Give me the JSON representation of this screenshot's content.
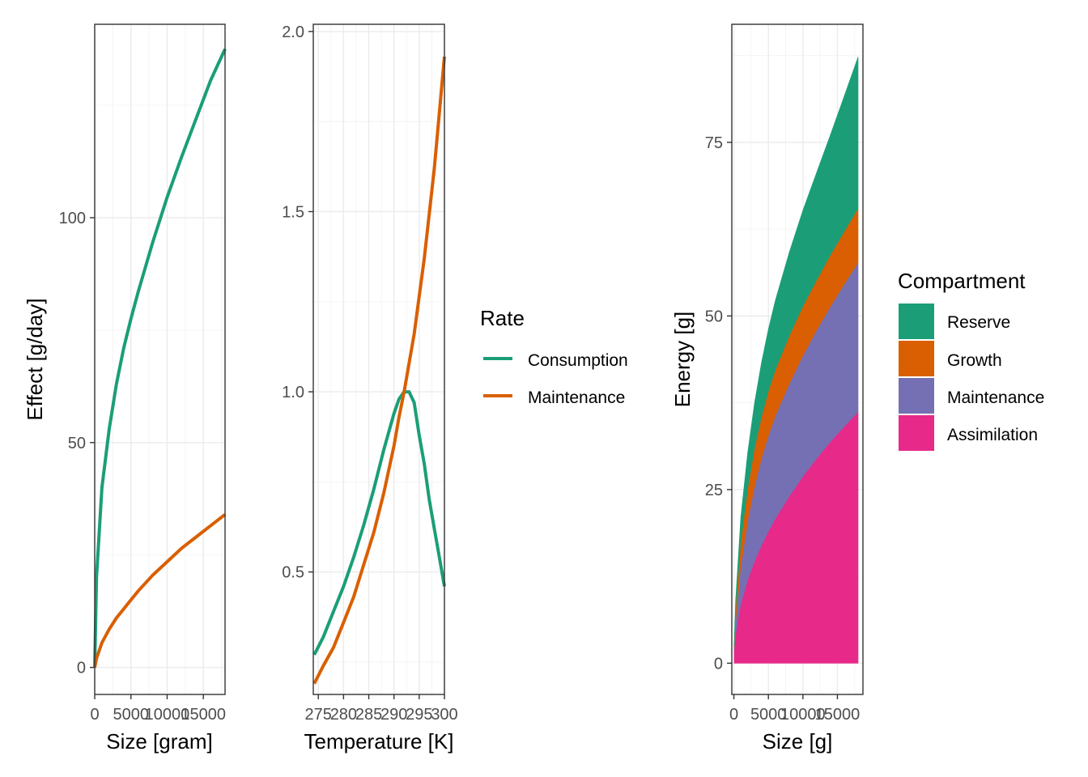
{
  "chart_data": [
    {
      "type": "line",
      "xlabel": "Size [gram]",
      "ylabel": "Effect [g/day]",
      "xlim": [
        0,
        18000
      ],
      "ylim": [
        -6,
        143
      ],
      "x_ticks": [
        0,
        5000,
        10000,
        15000
      ],
      "x_tick_labels": [
        "0",
        "5000",
        "10000",
        "15000"
      ],
      "y_ticks": [
        0,
        50,
        100
      ],
      "y_tick_labels": [
        "0",
        "50",
        "100"
      ],
      "grid": true,
      "series": [
        {
          "name": "Consumption",
          "color": "#1B9E77",
          "x": [
            0,
            250,
            1000,
            2000,
            3000,
            4000,
            5000,
            6000,
            8000,
            10000,
            12000,
            14000,
            16000,
            18000
          ],
          "y": [
            0,
            20,
            40,
            53,
            63,
            71,
            77.5,
            83.5,
            94.5,
            104.5,
            113.5,
            122,
            130.5,
            137.5
          ]
        },
        {
          "name": "Maintenance",
          "color": "#D95F02",
          "x": [
            0,
            250,
            1000,
            2000,
            3000,
            4000,
            5000,
            6000,
            8000,
            10000,
            12000,
            14000,
            16000,
            18000
          ],
          "y": [
            0,
            2,
            5.5,
            8.5,
            11,
            13,
            15,
            17,
            20.5,
            23.5,
            26.5,
            29,
            31.5,
            34
          ]
        }
      ]
    },
    {
      "type": "line",
      "xlabel": "Temperature [K]",
      "ylabel": "",
      "xlim": [
        274,
        300
      ],
      "ylim": [
        0.16,
        2.02
      ],
      "x_ticks": [
        275,
        280,
        285,
        290,
        295,
        300
      ],
      "x_tick_labels": [
        "275",
        "280",
        "285",
        "290",
        "295",
        "300"
      ],
      "y_ticks": [
        0.5,
        1.0,
        1.5,
        2.0
      ],
      "y_tick_labels": [
        "0.5",
        "1.0",
        "1.5",
        "2.0"
      ],
      "grid": true,
      "series": [
        {
          "name": "Consumption",
          "color": "#1B9E77",
          "x": [
            274.2,
            276,
            278,
            280,
            282,
            284,
            286,
            288,
            290,
            291,
            292,
            292.5,
            293,
            294,
            295,
            296,
            297,
            298,
            299,
            300
          ],
          "y": [
            0.27,
            0.32,
            0.39,
            0.46,
            0.54,
            0.63,
            0.73,
            0.84,
            0.94,
            0.98,
            1.0,
            1.0,
            1.0,
            0.97,
            0.88,
            0.8,
            0.7,
            0.62,
            0.54,
            0.46
          ]
        },
        {
          "name": "Maintenance",
          "color": "#D95F02",
          "x": [
            274.2,
            276,
            278,
            280,
            282,
            284,
            286,
            288,
            290,
            291,
            292,
            294,
            296,
            298,
            300
          ],
          "y": [
            0.19,
            0.24,
            0.29,
            0.36,
            0.43,
            0.52,
            0.61,
            0.72,
            0.85,
            0.93,
            1.0,
            1.16,
            1.37,
            1.62,
            1.93
          ]
        }
      ]
    },
    {
      "type": "area",
      "stacked": true,
      "xlabel": "Size [g]",
      "ylabel": "Energy [g]",
      "xlim": [
        -300,
        18700
      ],
      "ylim": [
        -4.5,
        92
      ],
      "x_ticks": [
        0,
        5000,
        10000,
        15000
      ],
      "x_tick_labels": [
        "0",
        "5000",
        "10000",
        "15000"
      ],
      "y_ticks": [
        0,
        25,
        50,
        75
      ],
      "y_tick_labels": [
        "0",
        "25",
        "50",
        "75"
      ],
      "grid": true,
      "x": [
        50,
        250,
        1000,
        2000,
        3000,
        4000,
        5000,
        6000,
        8000,
        10000,
        12000,
        14000,
        16000,
        18000
      ],
      "series": [
        {
          "name": "Assimilation",
          "color": "#E7298A",
          "values": [
            1.9,
            4.2,
            8.5,
            12,
            14.7,
            17,
            19,
            20.8,
            24,
            26.9,
            29.5,
            31.9,
            34.1,
            36.2
          ]
        },
        {
          "name": "Maintenance",
          "color": "#7570B3",
          "values": [
            0.4,
            1.8,
            5.5,
            8.5,
            10.8,
            12.5,
            13.8,
            14.8,
            16.2,
            17.4,
            18.5,
            19.5,
            20.5,
            21.5
          ]
        },
        {
          "name": "Growth",
          "color": "#D95F02",
          "values": [
            0.2,
            1.6,
            3.5,
            4.6,
            5.5,
            6.0,
            6.4,
            6.6,
            6.9,
            7.1,
            7.2,
            7.4,
            7.6,
            7.8
          ]
        },
        {
          "name": "Reserve",
          "color": "#1B9E77",
          "values": [
            0.3,
            1.4,
            3.5,
            5.2,
            6.5,
            7.8,
            8.9,
            10.0,
            12.0,
            13.8,
            15.5,
            17.3,
            19.5,
            21.8
          ]
        }
      ]
    }
  ],
  "legends": {
    "rate": {
      "title": "Rate",
      "items": [
        {
          "label": "Consumption",
          "color": "#1B9E77"
        },
        {
          "label": "Maintenance",
          "color": "#D95F02"
        }
      ]
    },
    "compartment": {
      "title": "Compartment",
      "items": [
        {
          "label": "Reserve",
          "color": "#1B9E77"
        },
        {
          "label": "Growth",
          "color": "#D95F02"
        },
        {
          "label": "Maintenance",
          "color": "#7570B3"
        },
        {
          "label": "Assimilation",
          "color": "#E7298A"
        }
      ]
    }
  }
}
